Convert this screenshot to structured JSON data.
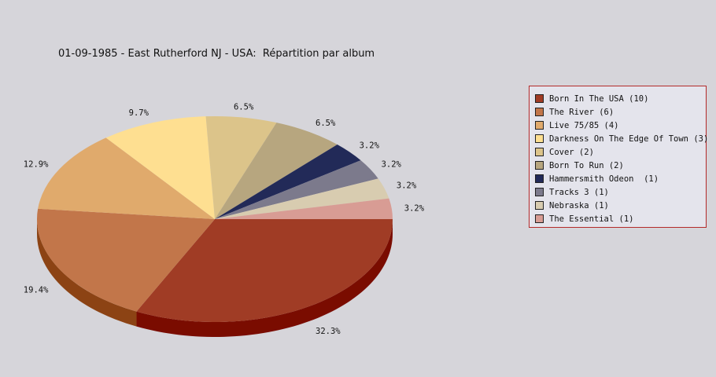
{
  "chart_data": {
    "type": "pie",
    "title": "01-09-1985 - East Rutherford NJ - USA:  Répartition par album",
    "slices": [
      {
        "label": "Born In The USA (10)",
        "value": 10,
        "percent_label": "32.3%",
        "color": "#a03c25",
        "side_color": "#7a0c00"
      },
      {
        "label": "The River (6)",
        "value": 6,
        "percent_label": "19.4%",
        "color": "#c2764a",
        "side_color": "#8c4314"
      },
      {
        "label": "Live 75/85 (4)",
        "value": 4,
        "percent_label": "12.9%",
        "color": "#e0aa6c",
        "side_color": "#b07a40"
      },
      {
        "label": "Darkness On The Edge Of Town (3)",
        "value": 3,
        "percent_label": "9.7%",
        "color": "#fedf91",
        "side_color": "#c8a860"
      },
      {
        "label": "Cover (2)",
        "value": 2,
        "percent_label": "6.5%",
        "color": "#dcc48a",
        "side_color": "#a89058"
      },
      {
        "label": "Born To Run (2)",
        "value": 2,
        "percent_label": "6.5%",
        "color": "#b7a67f",
        "side_color": "#857452"
      },
      {
        "label": "Hammersmith Odeon  (1)",
        "value": 1,
        "percent_label": "3.2%",
        "color": "#222a58",
        "side_color": "#10142c"
      },
      {
        "label": "Tracks 3 (1)",
        "value": 1,
        "percent_label": "3.2%",
        "color": "#7c7a8c",
        "side_color": "#4e4c5c"
      },
      {
        "label": "Nebraska (1)",
        "value": 1,
        "percent_label": "3.2%",
        "color": "#d8ccb0",
        "side_color": "#a89c80"
      },
      {
        "label": "The Essential (1)",
        "value": 1,
        "percent_label": "3.2%",
        "color": "#d89c94",
        "side_color": "#a86c64"
      }
    ],
    "legend_position": "right"
  }
}
